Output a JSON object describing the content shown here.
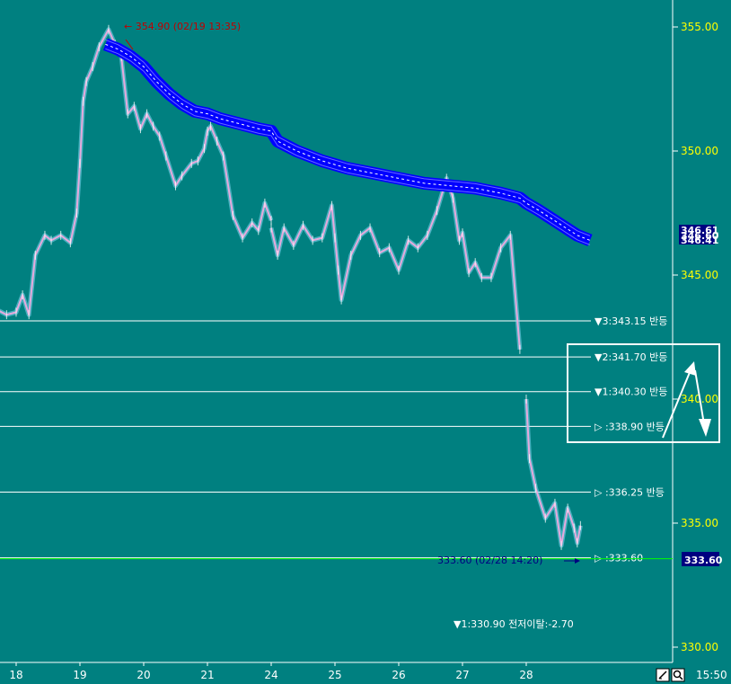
{
  "colors": {
    "background": "#008080",
    "axis_text": "#ffff00",
    "date_text": "#ffffff",
    "level_line": "#ffffff",
    "channel": "#0000ff",
    "candle": "#e6a9dc",
    "high_annotation": "#c00000",
    "low_annotation": "#000080",
    "current_price_box": "#000080",
    "current_price_line": "#00ff00"
  },
  "chart_data": {
    "type": "line",
    "ylim": [
      329.5,
      357.0
    ],
    "y_ticks": [
      "355.00",
      "350.00",
      "345.00",
      "340.00",
      "335.00",
      "330.00"
    ],
    "y_tick_values": [
      355.0,
      350.0,
      345.0,
      340.0,
      335.0,
      330.0
    ],
    "x_ticks": [
      "18",
      "19",
      "20",
      "21",
      "24",
      "25",
      "26",
      "27",
      "28"
    ],
    "time_label": "15:50",
    "price_series": {
      "x": [
        17.7,
        17.85,
        18.0,
        18.1,
        18.2,
        18.3,
        18.45,
        18.55,
        18.7,
        18.85,
        18.95,
        19.0,
        19.05,
        19.1,
        19.2,
        19.3,
        19.45,
        19.55,
        19.65,
        19.75,
        19.85,
        19.95,
        20.05,
        20.15,
        20.25,
        20.35,
        20.5,
        20.6,
        20.75,
        20.85,
        20.95,
        21.0,
        21.05,
        21.15,
        21.25,
        21.4,
        21.55,
        21.7,
        21.8,
        21.9,
        22.0,
        24.0,
        24.1,
        24.2,
        24.35,
        24.5,
        24.65,
        24.8,
        24.95,
        25.0,
        25.05,
        25.1,
        25.25,
        25.4,
        25.55,
        25.7,
        25.85,
        26.0,
        26.15,
        26.3,
        26.45,
        26.6,
        26.75,
        26.85,
        26.95,
        27.0,
        27.1,
        27.2,
        27.3,
        27.45,
        27.6,
        27.75,
        27.9,
        28.0,
        28.05,
        28.15,
        28.3,
        28.45,
        28.55,
        28.65,
        28.75,
        28.8,
        28.85
      ],
      "values": [
        343.6,
        343.4,
        343.5,
        344.2,
        343.4,
        345.8,
        346.6,
        346.4,
        346.6,
        346.3,
        347.5,
        349.5,
        352.0,
        352.8,
        353.4,
        354.2,
        354.9,
        354.3,
        353.8,
        351.5,
        351.8,
        350.9,
        351.5,
        351.0,
        350.6,
        349.8,
        348.6,
        349.0,
        349.5,
        349.6,
        350.1,
        350.8,
        351.0,
        350.4,
        349.8,
        347.4,
        346.5,
        347.1,
        346.8,
        347.9,
        347.2,
        346.9,
        345.8,
        346.9,
        346.2,
        347.0,
        346.4,
        346.5,
        347.8,
        346.5,
        345.2,
        344.0,
        345.8,
        346.6,
        346.9,
        345.9,
        346.1,
        345.2,
        346.4,
        346.1,
        346.6,
        347.6,
        348.9,
        348.1,
        346.4,
        346.7,
        345.1,
        345.5,
        344.9,
        344.9,
        346.1,
        346.6,
        342.0,
        340.0,
        337.6,
        336.4,
        335.2,
        335.8,
        334.1,
        335.6,
        334.8,
        334.2,
        334.9
      ]
    },
    "channel_series": {
      "x": [
        19.4,
        19.6,
        19.8,
        20.0,
        20.2,
        20.4,
        20.6,
        20.8,
        21.0,
        21.2,
        21.5,
        21.8,
        22.0,
        24.1,
        24.4,
        24.8,
        25.2,
        25.6,
        26.0,
        26.4,
        26.8,
        27.2,
        27.6,
        27.9,
        28.0,
        28.2,
        28.5,
        28.8,
        29.0
      ],
      "values": [
        354.3,
        354.1,
        353.8,
        353.4,
        352.8,
        352.3,
        351.9,
        351.6,
        351.5,
        351.3,
        351.1,
        350.9,
        350.8,
        350.4,
        350.0,
        349.6,
        349.3,
        349.1,
        348.9,
        348.7,
        348.6,
        348.5,
        348.3,
        348.1,
        347.9,
        347.6,
        347.1,
        346.6,
        346.4
      ]
    },
    "levels": [
      {
        "value": 343.15,
        "label": "▼3:343.15 반등"
      },
      {
        "value": 341.7,
        "label": "▼2:341.70 반등"
      },
      {
        "value": 340.3,
        "label": "▼1:340.30 반등"
      },
      {
        "value": 338.9,
        "label": "▷ :338.90 반등"
      },
      {
        "value": 336.25,
        "label": "▷ :336.25 반등"
      },
      {
        "value": 333.6,
        "label": "▷ :333.60"
      }
    ],
    "annotations": {
      "high": {
        "value": 354.9,
        "label": "← 354.90 (02/19 13:35)"
      },
      "low": {
        "value": 333.6,
        "label": "333.60 (02/28 14:20)"
      },
      "bottom": {
        "value": 330.9,
        "label": "▼1:330.90 전저이탈:-2.70"
      }
    },
    "right_price_boxes": [
      "346.61",
      "346.41",
      "346.60"
    ],
    "current_price": {
      "value": 333.6,
      "label": "333.60"
    }
  }
}
